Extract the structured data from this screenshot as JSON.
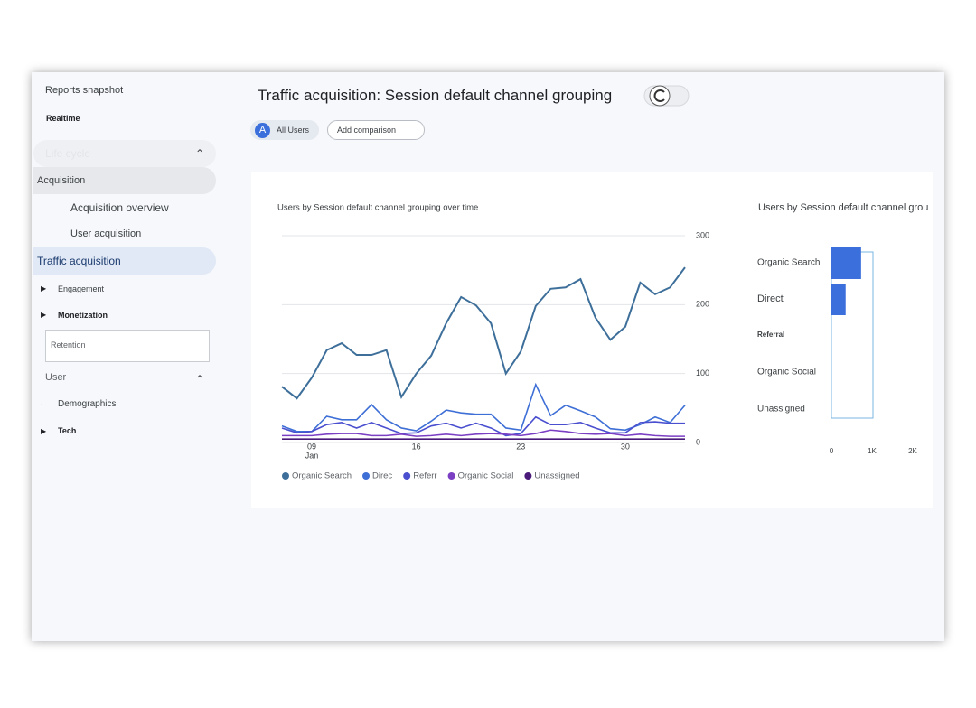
{
  "sidebar": {
    "items": [
      "Reports snapshot",
      "Realtime",
      "Life cycle",
      "Acquisition",
      "Acquisition overview",
      "User acquisition",
      "Traffic acquisition",
      "Engagement",
      "Monetization",
      "Retention",
      "User",
      "Demographics",
      "Tech"
    ]
  },
  "header": {
    "title": "Traffic acquisition: Session default channel grouping",
    "segment_badge": "A",
    "segment": "All Users",
    "add_comparison": "Add comparison"
  },
  "chart_data": [
    {
      "type": "line",
      "title": "Users by Session default channel grouping over time",
      "categories": [
        null,
        null,
        "09",
        null,
        null,
        null,
        null,
        null,
        null,
        "16",
        null,
        null,
        null,
        null,
        null,
        null,
        "23",
        null,
        null,
        null,
        null,
        null,
        null,
        "30",
        null,
        null,
        null,
        null
      ],
      "month_label": "Jan",
      "ylim": [
        0,
        300
      ],
      "yticks": [
        0,
        100,
        200,
        300
      ],
      "grid": true,
      "series": [
        {
          "name": "Organic Search",
          "color": "#3d6f9a",
          "values": [
            81,
            64,
            94,
            134,
            144,
            127,
            127,
            134,
            66,
            100,
            126,
            173,
            211,
            199,
            173,
            100,
            132,
            198,
            223,
            225,
            237,
            181,
            149,
            168,
            232,
            215,
            225,
            254
          ]
        },
        {
          "name": "Direc",
          "color": "#3e6fd6",
          "values": [
            24,
            16,
            16,
            38,
            33,
            33,
            55,
            33,
            21,
            17,
            31,
            47,
            43,
            41,
            41,
            21,
            18,
            84,
            39,
            54,
            46,
            37,
            20,
            18,
            26,
            37,
            29,
            54
          ]
        },
        {
          "name": "Referr",
          "color": "#4a4fcf",
          "values": [
            21,
            14,
            16,
            26,
            29,
            21,
            29,
            21,
            13,
            14,
            24,
            28,
            21,
            28,
            21,
            10,
            13,
            37,
            26,
            26,
            29,
            21,
            14,
            14,
            29,
            30,
            28,
            28
          ]
        },
        {
          "name": "Organic Social",
          "color": "#7b3fc4",
          "values": [
            10,
            10,
            10,
            12,
            13,
            13,
            10,
            10,
            12,
            9,
            10,
            12,
            10,
            12,
            13,
            12,
            10,
            13,
            18,
            16,
            13,
            12,
            13,
            10,
            12,
            10,
            9,
            9
          ]
        },
        {
          "name": "Unassigned",
          "color": "#4a1a7a",
          "values": [
            5,
            5,
            5,
            5,
            5,
            5,
            5,
            5,
            5,
            5,
            5,
            5,
            5,
            5,
            5,
            5,
            5,
            5,
            5,
            5,
            5,
            5,
            5,
            5,
            5,
            5,
            5,
            5
          ]
        }
      ]
    },
    {
      "type": "hbar",
      "title": "Users by Session default channel grou",
      "categories": [
        "Organic Search",
        "Direct",
        "Referral",
        "Organic Social",
        "Unassigned"
      ],
      "values": [
        730,
        350,
        0,
        0,
        0
      ],
      "color": "#3a6fdc",
      "xlim": [
        0,
        2000
      ],
      "xticks": [
        0,
        {
          "value": 1000,
          "label": "1K"
        },
        {
          "value": 2000,
          "label": "2K"
        }
      ]
    }
  ]
}
